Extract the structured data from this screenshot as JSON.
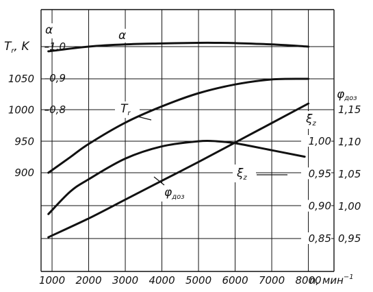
{
  "chart_data": {
    "type": "line",
    "title": "",
    "x_axis": {
      "label": "n, мин",
      "label_exp": "−1",
      "ticks": [
        1000,
        2000,
        3000,
        4000,
        5000,
        6000,
        7000,
        8000
      ],
      "range": [
        700,
        8700
      ]
    },
    "left_axis_1": {
      "label": "α",
      "ticks": [
        {
          "value": 1.0,
          "text": "1,0"
        },
        {
          "value": 0.9,
          "text": "0,9"
        },
        {
          "value": 0.8,
          "text": "0,8"
        }
      ]
    },
    "left_axis_2": {
      "label_main": "T",
      "label_sub": "r",
      "label_unit": ", K",
      "ticks": [
        {
          "value": 1050,
          "text": "1050"
        },
        {
          "value": 1000,
          "text": "1000"
        },
        {
          "value": 950,
          "text": "950"
        },
        {
          "value": 900,
          "text": "900"
        }
      ]
    },
    "right_axis_1": {
      "label": "",
      "ticks": [
        {
          "value": 1.0,
          "text": "1,00"
        },
        {
          "value": 0.95,
          "text": "0,95"
        },
        {
          "value": 0.9,
          "text": "0,90"
        },
        {
          "value": 0.85,
          "text": "0,85"
        }
      ]
    },
    "right_axis_2": {
      "label_main": "φ",
      "label_sub": "доз",
      "ticks": [
        {
          "value": 1.15,
          "text": "1,15"
        },
        {
          "value": 1.1,
          "text": "1,10"
        },
        {
          "value": 1.05,
          "text": "1,05"
        },
        {
          "value": 1.0,
          "text": "1,00"
        },
        {
          "value": 0.95,
          "text": "0,95"
        }
      ]
    },
    "series": [
      {
        "name": "α",
        "axis": "alpha",
        "x": [
          900,
          2000,
          3000,
          4000,
          5000,
          5500,
          6000,
          7000,
          8000
        ],
        "y": [
          0.985,
          1.0,
          1.007,
          1.01,
          1.012,
          1.012,
          1.011,
          1.007,
          1.0
        ]
      },
      {
        "name": "Tr",
        "axis": "Tr",
        "x": [
          900,
          1500,
          2000,
          3000,
          4000,
          5000,
          6000,
          7000,
          8000
        ],
        "y": [
          900,
          925,
          946,
          980,
          1006,
          1027,
          1041,
          1049,
          1050
        ]
      },
      {
        "name": "ξz",
        "axis": "xi",
        "x": [
          900,
          2000,
          3000,
          4000,
          5000,
          6000,
          7000,
          8000
        ],
        "y": [
          0.852,
          0.881,
          0.91,
          0.939,
          0.968,
          0.998,
          1.028,
          1.058
        ]
      },
      {
        "name": "φдоз",
        "axis": "phi",
        "x": [
          900,
          1500,
          2000,
          3000,
          4000,
          5000,
          5500,
          6000,
          7000,
          7900
        ],
        "y": [
          0.988,
          1.023,
          1.042,
          1.074,
          1.093,
          1.101,
          1.101,
          1.098,
          1.087,
          1.077
        ]
      }
    ],
    "curve_labels": {
      "alpha": "α",
      "tr_main": "T",
      "tr_sub": "r",
      "xi_main": "ξ",
      "xi_sub": "z",
      "xi_right_main": "ξ",
      "xi_right_sub": "z",
      "phi_main": "φ",
      "phi_sub": "доз"
    },
    "grid": true
  }
}
